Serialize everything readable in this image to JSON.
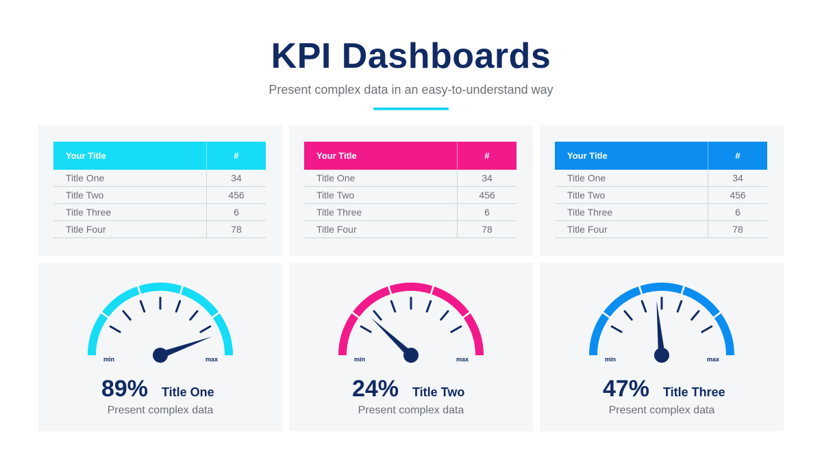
{
  "header": {
    "title": "KPI Dashboards",
    "subtitle": "Present complex data in an easy-to-understand way",
    "accent_color": "#1fd4f2"
  },
  "tables": [
    {
      "color": "#16dcf6",
      "header": {
        "title": "Your Title",
        "num": "#"
      },
      "rows": [
        {
          "label": "Title One",
          "value": "34"
        },
        {
          "label": "Title Two",
          "value": "456"
        },
        {
          "label": "Title Three",
          "value": "6"
        },
        {
          "label": "Title Four",
          "value": "78"
        }
      ]
    },
    {
      "color": "#f21a8a",
      "header": {
        "title": "Your Title",
        "num": "#"
      },
      "rows": [
        {
          "label": "Title One",
          "value": "34"
        },
        {
          "label": "Title Two",
          "value": "456"
        },
        {
          "label": "Title Three",
          "value": "6"
        },
        {
          "label": "Title Four",
          "value": "78"
        }
      ]
    },
    {
      "color": "#0b8ef0",
      "header": {
        "title": "Your Title",
        "num": "#"
      },
      "rows": [
        {
          "label": "Title One",
          "value": "34"
        },
        {
          "label": "Title Two",
          "value": "456"
        },
        {
          "label": "Title Three",
          "value": "6"
        },
        {
          "label": "Title Four",
          "value": "78"
        }
      ]
    }
  ],
  "chart_data": [
    {
      "type": "gauge",
      "value": 89,
      "value_label": "89%",
      "title": "Title One",
      "caption": "Present complex data",
      "min_label": "min",
      "max_label": "max",
      "range": [
        0,
        100
      ],
      "color": "#16dcf6"
    },
    {
      "type": "gauge",
      "value": 24,
      "value_label": "24%",
      "title": "Title Two",
      "caption": "Present complex data",
      "min_label": "min",
      "max_label": "max",
      "range": [
        0,
        100
      ],
      "color": "#f21a8a"
    },
    {
      "type": "gauge",
      "value": 47,
      "value_label": "47%",
      "title": "Title Three",
      "caption": "Present complex data",
      "min_label": "min",
      "max_label": "max",
      "range": [
        0,
        100
      ],
      "color": "#0b8ef0"
    }
  ],
  "colors": {
    "navy": "#112a63",
    "panel_bg": "#f4f6f7",
    "text_gray": "#6b6f78"
  }
}
